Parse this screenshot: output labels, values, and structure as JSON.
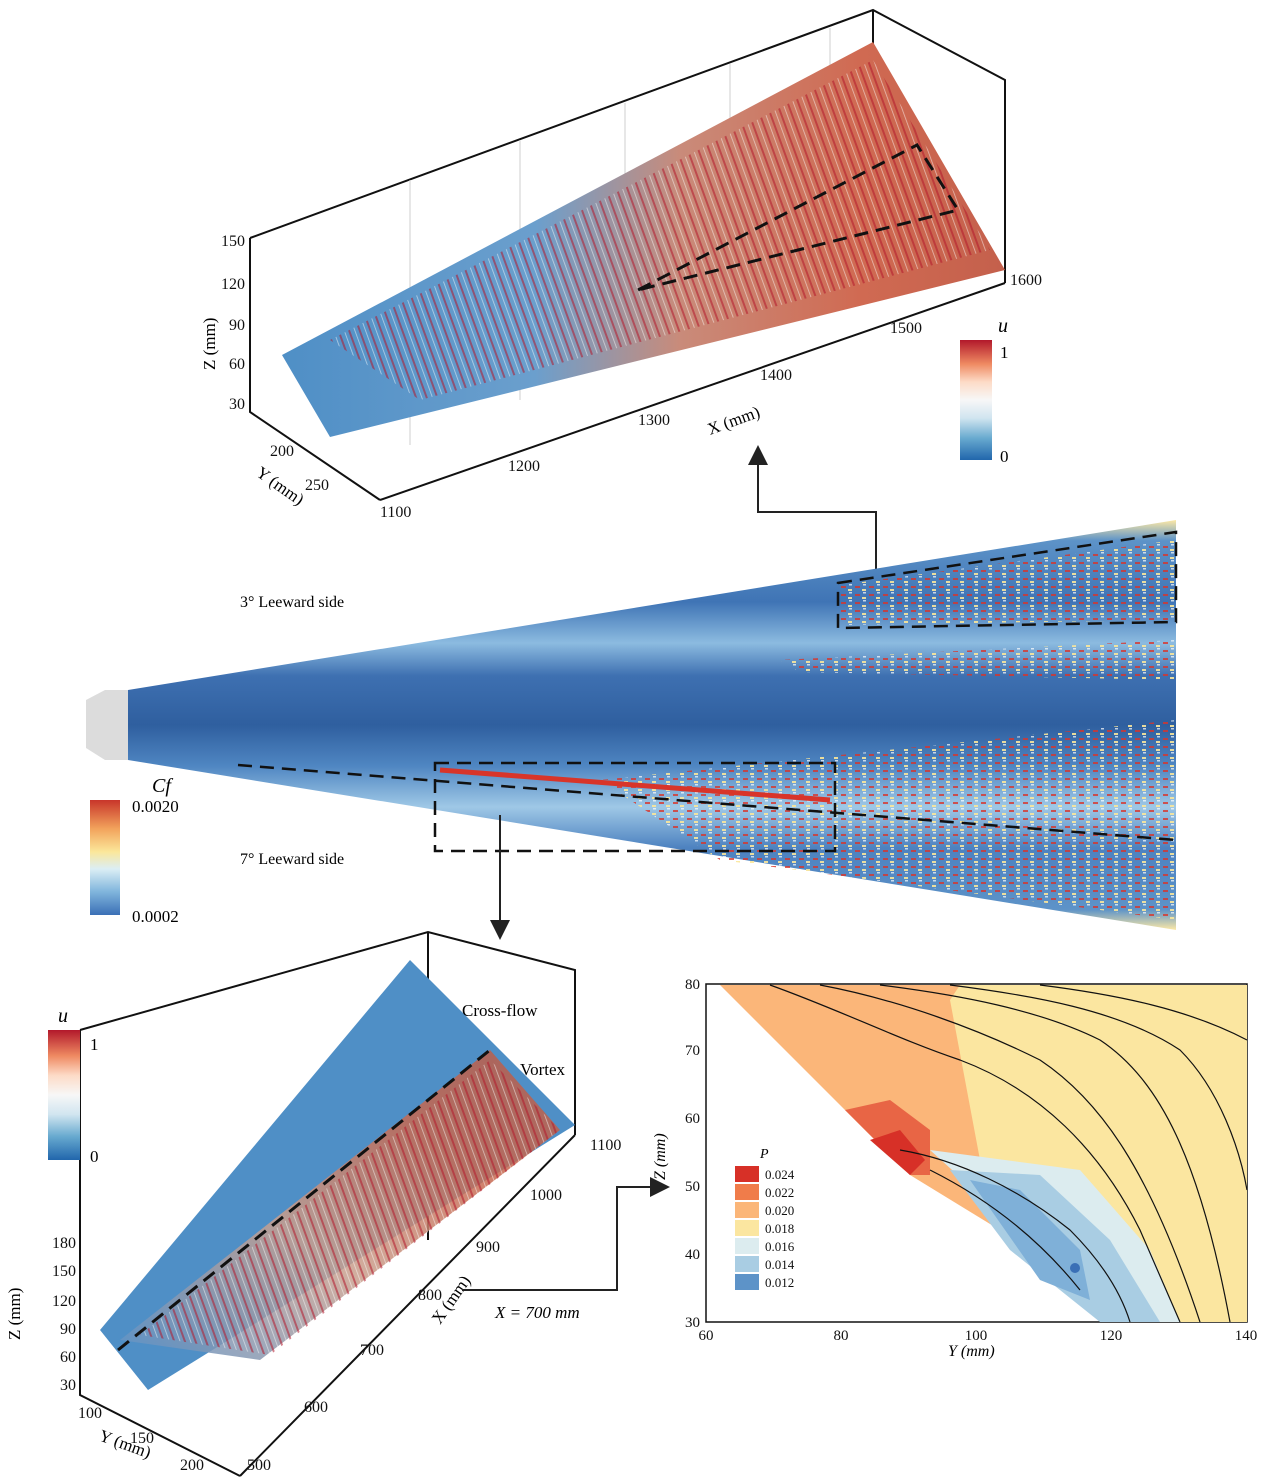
{
  "top_panel": {
    "legend_title": "u",
    "legend_max": "1",
    "legend_min": "0",
    "z_axis_label": "Z (mm)",
    "z_ticks": [
      "150",
      "120",
      "90",
      "60",
      "30"
    ],
    "y_axis_label": "Y (mm)",
    "y_ticks": [
      "200",
      "250"
    ],
    "x_axis_label": "X (mm)",
    "x_ticks": [
      "1100",
      "1200",
      "1300",
      "1400",
      "1500",
      "1600"
    ]
  },
  "middle_panel": {
    "label_upper": "3° Leeward side",
    "label_lower": "7° Leeward side",
    "colorbar_title": "Cf",
    "colorbar_max": "0.0020",
    "colorbar_min": "0.0002"
  },
  "bottom_left_panel": {
    "legend_title": "u",
    "legend_max": "1",
    "legend_min": "0",
    "annotation_crossflow": "Cross-flow",
    "annotation_vortex": "Vortex",
    "z_axis_label": "Z (mm)",
    "z_ticks": [
      "180",
      "150",
      "120",
      "90",
      "60",
      "30"
    ],
    "y_axis_label": "Y (mm)",
    "y_ticks": [
      "100",
      "150",
      "200"
    ],
    "x_axis_label": "X (mm)",
    "x_ticks": [
      "500",
      "600",
      "700",
      "800",
      "900",
      "1000",
      "1100"
    ],
    "slice_label": "X = 700 mm"
  },
  "bottom_right_panel": {
    "legend_title": "P",
    "legend_levels": [
      "0.024",
      "0.022",
      "0.020",
      "0.018",
      "0.016",
      "0.014",
      "0.012"
    ],
    "legend_colors": [
      "#d73027",
      "#f07c4a",
      "#fbb679",
      "#fbe6a0",
      "#dcecef",
      "#a9cde3",
      "#5d93c8"
    ],
    "x_axis_label": "Y (mm)",
    "x_ticks": [
      "60",
      "80",
      "100",
      "120",
      "140"
    ],
    "y_axis_label": "Z (mm)",
    "y_ticks": [
      "30",
      "40",
      "50",
      "60",
      "70",
      "80"
    ]
  }
}
